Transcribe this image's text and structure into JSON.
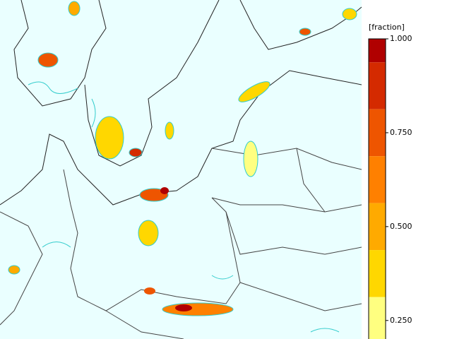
{
  "colorbar": {
    "title": "[fraction]",
    "lim": [
      0.1875,
      1.0
    ],
    "ticks": [
      {
        "value": 1.0,
        "label": "1.000"
      },
      {
        "value": 0.75,
        "label": "0.750"
      },
      {
        "value": 0.5,
        "label": "0.500"
      },
      {
        "value": 0.25,
        "label": "0.250"
      }
    ],
    "levels": [
      {
        "from": 0.9375,
        "to": 1.0,
        "color": "#b00000"
      },
      {
        "from": 0.8125,
        "to": 0.9375,
        "color": "#d42a00"
      },
      {
        "from": 0.6875,
        "to": 0.8125,
        "color": "#ee5500"
      },
      {
        "from": 0.5625,
        "to": 0.6875,
        "color": "#ff8000"
      },
      {
        "from": 0.4375,
        "to": 0.5625,
        "color": "#ffaa00"
      },
      {
        "from": 0.3125,
        "to": 0.4375,
        "color": "#ffd700"
      },
      {
        "from": 0.1875,
        "to": 0.3125,
        "color": "#ffff80"
      }
    ]
  }
}
